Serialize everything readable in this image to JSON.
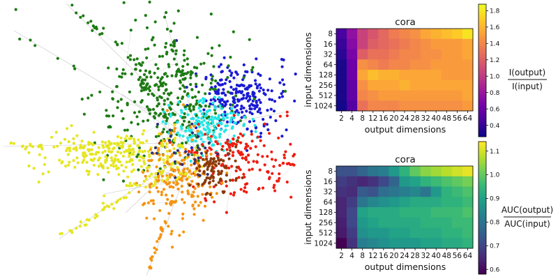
{
  "graph": {
    "dataset": "cora",
    "communities": [
      {
        "color": "#1a1ad6",
        "count": 240
      },
      {
        "color": "#1e7b14",
        "count": 320
      },
      {
        "color": "#22e6e6",
        "count": 170
      },
      {
        "color": "#e6e620",
        "count": 230
      },
      {
        "color": "#ef1c10",
        "count": 160
      },
      {
        "color": "#f59412",
        "count": 190
      },
      {
        "color": "#8b3a0a",
        "count": 90
      },
      {
        "color": "#2f2f7a",
        "count": 30
      }
    ],
    "edge_color": "#b8b8b8"
  },
  "chart_data": [
    {
      "type": "heatmap",
      "title": "cora",
      "xlabel": "output dimensions",
      "ylabel": "input dimensions",
      "x_categories": [
        "2",
        "4",
        "8",
        "12",
        "16",
        "20",
        "24",
        "28",
        "32",
        "40",
        "48",
        "56",
        "64"
      ],
      "y_categories": [
        "8",
        "16",
        "32",
        "64",
        "128",
        "256",
        "512",
        "1024"
      ],
      "colormap": "plasma",
      "colorbar_label_num": "I(output)",
      "colorbar_label_den": "I(input)",
      "colorbar_range": [
        0.26,
        1.88
      ],
      "colorbar_ticks": [
        "0.4",
        "0.6",
        "0.8",
        "1.0",
        "1.2",
        "1.4",
        "1.6",
        "1.8"
      ],
      "values": [
        [
          0.45,
          0.75,
          1.05,
          1.15,
          1.25,
          1.35,
          1.4,
          1.45,
          1.55,
          1.6,
          1.65,
          1.7,
          1.8
        ],
        [
          0.4,
          0.7,
          1.05,
          1.2,
          1.25,
          1.3,
          1.35,
          1.4,
          1.45,
          1.5,
          1.5,
          1.5,
          1.55
        ],
        [
          0.35,
          0.65,
          1.2,
          1.3,
          1.3,
          1.35,
          1.4,
          1.4,
          1.45,
          1.45,
          1.5,
          1.5,
          1.55
        ],
        [
          0.3,
          0.6,
          1.45,
          1.4,
          1.35,
          1.4,
          1.4,
          1.45,
          1.45,
          1.5,
          1.5,
          1.5,
          1.5
        ],
        [
          0.3,
          0.6,
          1.55,
          1.65,
          1.6,
          1.6,
          1.55,
          1.55,
          1.55,
          1.55,
          1.5,
          1.5,
          1.5
        ],
        [
          0.3,
          0.55,
          1.45,
          1.55,
          1.55,
          1.55,
          1.6,
          1.55,
          1.55,
          1.55,
          1.55,
          1.55,
          1.55
        ],
        [
          0.3,
          0.55,
          1.4,
          1.45,
          1.5,
          1.5,
          1.5,
          1.5,
          1.5,
          1.5,
          1.5,
          1.5,
          1.55
        ],
        [
          0.28,
          0.5,
          1.3,
          1.4,
          1.4,
          1.4,
          1.45,
          1.45,
          1.45,
          1.45,
          1.45,
          1.45,
          1.5
        ]
      ]
    },
    {
      "type": "heatmap",
      "title": "cora",
      "xlabel": "output dimensions",
      "ylabel": "input dimensions",
      "x_categories": [
        "2",
        "4",
        "8",
        "12",
        "16",
        "20",
        "24",
        "28",
        "32",
        "40",
        "48",
        "56",
        "64"
      ],
      "y_categories": [
        "8",
        "16",
        "32",
        "64",
        "128",
        "256",
        "512",
        "1024"
      ],
      "colormap": "viridis",
      "colorbar_label_num": "AUC(output)",
      "colorbar_label_den": "AUC(input)",
      "colorbar_range": [
        0.58,
        1.14
      ],
      "colorbar_ticks": [
        "0.6",
        "0.7",
        "0.8",
        "0.9",
        "1.0",
        "1.1"
      ],
      "values": [
        [
          0.72,
          0.72,
          0.76,
          0.8,
          0.82,
          0.88,
          0.94,
          1.0,
          1.04,
          1.06,
          1.08,
          1.1,
          1.12
        ],
        [
          0.68,
          0.66,
          0.64,
          0.66,
          0.7,
          0.76,
          0.88,
          0.9,
          0.94,
          0.96,
          0.98,
          1.0,
          1.02
        ],
        [
          0.66,
          0.65,
          0.74,
          0.72,
          0.78,
          0.8,
          0.82,
          0.84,
          0.8,
          0.88,
          0.94,
          0.96,
          0.98
        ],
        [
          0.64,
          0.68,
          0.8,
          0.84,
          0.86,
          0.88,
          0.9,
          0.92,
          0.92,
          0.92,
          0.94,
          0.94,
          0.96
        ],
        [
          0.64,
          0.7,
          0.9,
          0.92,
          0.92,
          0.92,
          0.94,
          0.94,
          0.94,
          0.96,
          0.96,
          0.96,
          0.98
        ],
        [
          0.63,
          0.7,
          0.88,
          0.9,
          0.92,
          0.92,
          0.92,
          0.92,
          0.94,
          0.94,
          0.94,
          0.96,
          0.96
        ],
        [
          0.62,
          0.68,
          0.86,
          0.88,
          0.88,
          0.9,
          0.9,
          0.92,
          0.92,
          0.92,
          0.94,
          0.94,
          0.96
        ],
        [
          0.58,
          0.66,
          0.82,
          0.84,
          0.86,
          0.88,
          0.88,
          0.88,
          0.9,
          0.9,
          0.92,
          0.92,
          0.94
        ]
      ]
    }
  ]
}
